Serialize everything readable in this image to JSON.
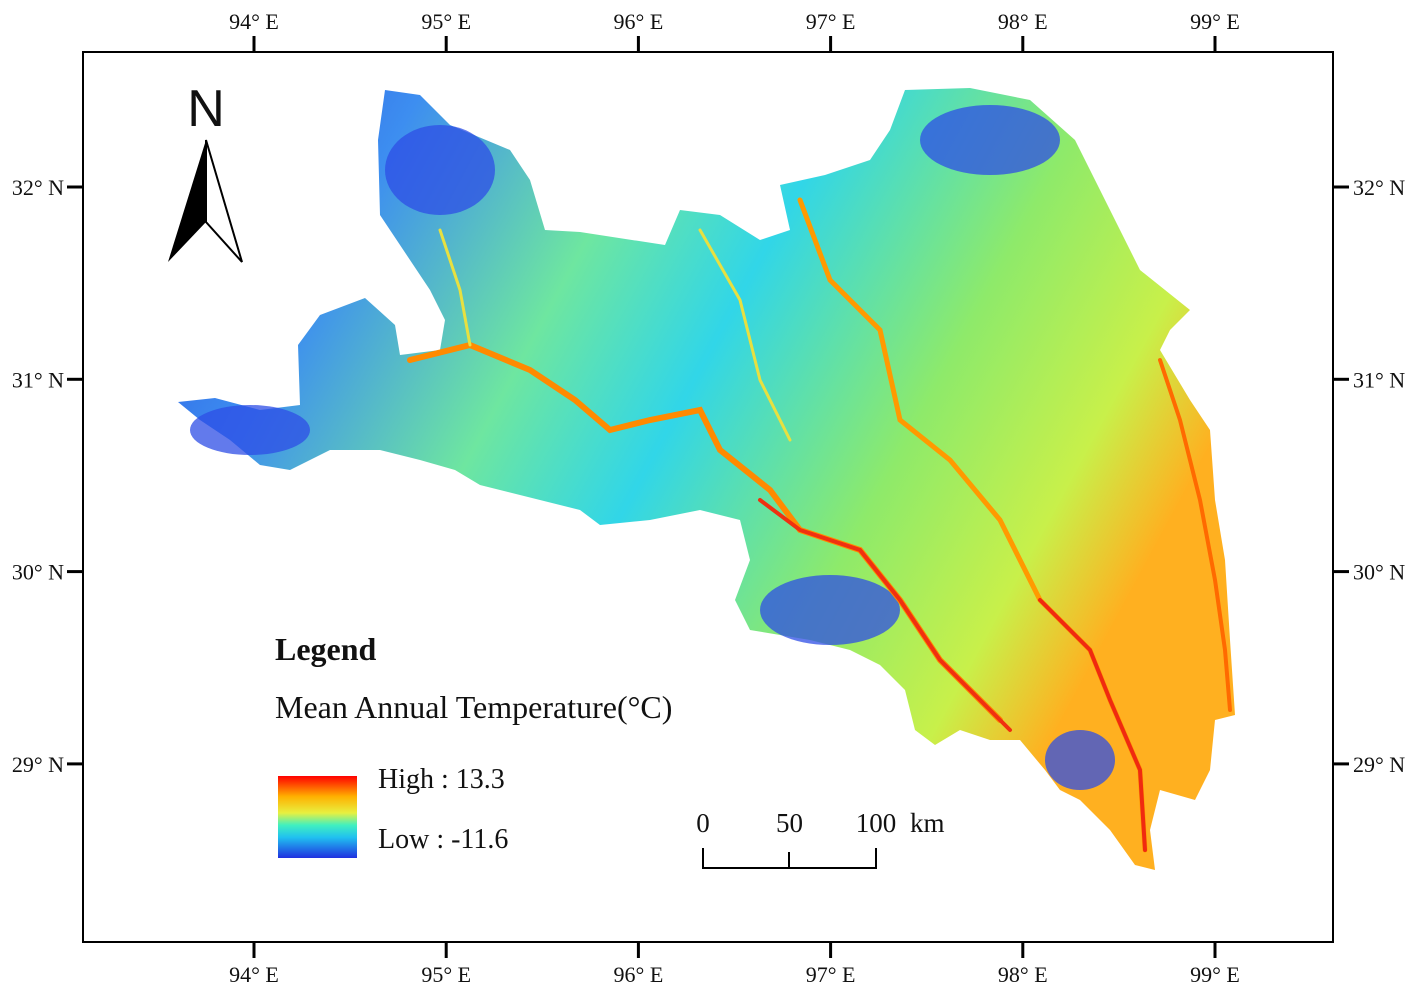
{
  "map": {
    "longitude_labels": [
      "94° E",
      "95° E",
      "96° E",
      "97° E",
      "98° E",
      "99° E"
    ],
    "latitude_labels": [
      "32° N",
      "31° N",
      "30° N",
      "29° N"
    ],
    "north_arrow": "N",
    "legend": {
      "heading": "Legend",
      "title": "Mean Annual Temperature(°C)",
      "high": "High : 13.3",
      "low": "Low : -11.6"
    },
    "scale_bar": {
      "labels": [
        "0",
        "50",
        "100"
      ],
      "unit": "km"
    }
  }
}
